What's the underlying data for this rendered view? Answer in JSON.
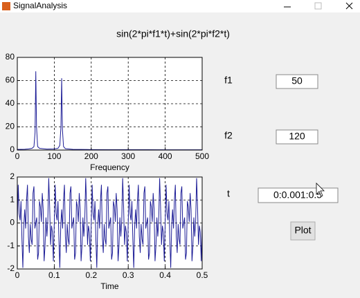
{
  "window": {
    "title": "SignalAnalysis"
  },
  "heading": "sin(2*pi*f1*t)+sin(2*pi*f2*t)",
  "chart_data": [
    {
      "type": "line",
      "xlabel": "Frequency",
      "color": "#1c1c96",
      "grid": true,
      "xlim": [
        0,
        500
      ],
      "xticks": [
        0,
        100,
        200,
        300,
        400,
        500
      ],
      "ylim": [
        0,
        80
      ],
      "yticks": [
        0,
        20,
        40,
        60,
        80
      ],
      "x": [
        0,
        10,
        20,
        30,
        40,
        45,
        48,
        50,
        52,
        55,
        60,
        80,
        100,
        110,
        115,
        118,
        120,
        122,
        125,
        130,
        150,
        200,
        250,
        300,
        350,
        400,
        450,
        500
      ],
      "values": [
        0.5,
        0.6,
        0.7,
        1,
        1.5,
        3,
        15,
        68,
        20,
        3,
        1.5,
        0.8,
        1,
        1.5,
        4,
        20,
        62,
        18,
        3,
        1.2,
        0.6,
        0.4,
        0.3,
        0.3,
        0.3,
        0.2,
        0.2,
        0.2
      ]
    },
    {
      "type": "line",
      "xlabel": "Time",
      "color": "#1c1c96",
      "grid": true,
      "xlim": [
        0,
        0.5
      ],
      "xticks": [
        0,
        0.1,
        0.2,
        0.3,
        0.4,
        0.5
      ],
      "ylim": [
        -2,
        2
      ],
      "yticks": [
        -2,
        -1,
        0,
        1,
        2
      ],
      "x": [
        0,
        0.0025,
        0.005,
        0.0075,
        0.01,
        0.0125,
        0.015,
        0.0175,
        0.02,
        0.0225,
        0.025,
        0.0275,
        0.03,
        0.0325,
        0.035,
        0.0375,
        0.04,
        0.0425,
        0.045,
        0.0475,
        0.05,
        0.0525,
        0.055,
        0.0575,
        0.06,
        0.0625,
        0.065,
        0.0675,
        0.07,
        0.0725,
        0.075,
        0.0775,
        0.08,
        0.0825,
        0.085,
        0.0875,
        0.09,
        0.0925,
        0.095,
        0.0975,
        0.1,
        0.1025,
        0.105,
        0.1075,
        0.11,
        0.1125,
        0.115,
        0.1175,
        0.12,
        0.1225,
        0.125,
        0.1275,
        0.13,
        0.1325,
        0.135,
        0.1375,
        0.14,
        0.1425,
        0.145,
        0.1475,
        0.15,
        0.1525,
        0.155,
        0.1575,
        0.16,
        0.1625,
        0.165,
        0.1675,
        0.17,
        0.1725,
        0.175,
        0.1775,
        0.18,
        0.1825,
        0.185,
        0.1875,
        0.19,
        0.1925,
        0.195,
        0.1975,
        0.2,
        0.2025,
        0.205,
        0.2075,
        0.21,
        0.2125,
        0.215,
        0.2175,
        0.22,
        0.2225,
        0.225,
        0.2275,
        0.23,
        0.2325,
        0.235,
        0.2375,
        0.24,
        0.2425,
        0.245,
        0.2475,
        0.25,
        0.2525,
        0.255,
        0.2575,
        0.26,
        0.2625,
        0.265,
        0.2675,
        0.27,
        0.2725,
        0.275,
        0.2775,
        0.28,
        0.2825,
        0.285,
        0.2875,
        0.29,
        0.2925,
        0.295,
        0.2975,
        0.3,
        0.3025,
        0.305,
        0.3075,
        0.31,
        0.3125,
        0.315,
        0.3175,
        0.32,
        0.3225,
        0.325,
        0.3275,
        0.33,
        0.3325,
        0.335,
        0.3375,
        0.34,
        0.3425,
        0.345,
        0.3475,
        0.35,
        0.3525,
        0.355,
        0.3575,
        0.36,
        0.3625,
        0.365,
        0.3675,
        0.37,
        0.3725,
        0.375,
        0.3775,
        0.38,
        0.3825,
        0.385,
        0.3875,
        0.39,
        0.3925,
        0.395,
        0.3975,
        0.4,
        0.4025,
        0.405,
        0.4075,
        0.41,
        0.4125,
        0.415,
        0.4175,
        0.42,
        0.4225,
        0.425,
        0.4275,
        0.43,
        0.4325,
        0.435,
        0.4375,
        0.44,
        0.4425,
        0.445,
        0.4475,
        0.45,
        0.4525,
        0.455,
        0.4575,
        0.46,
        0.4625,
        0.465,
        0.4675,
        0.47,
        0.4725,
        0.475,
        0.4775,
        0.48,
        0.4825,
        0.485,
        0.4875,
        0.49,
        0.4925,
        0.495,
        0.4975,
        0.5
      ],
      "values": [
        0,
        1.66,
        0.41,
        0.12,
        0.95,
        -0.71,
        -1.95,
        -0.12,
        0.59,
        -0.24,
        1,
        1.66,
        -0.59,
        -1.3,
        -0.05,
        -0.71,
        -0.95,
        1.3,
        1.59,
        -0.24,
        0,
        0.24,
        -1.59,
        -1.3,
        0.95,
        0.71,
        0.05,
        1.3,
        0.59,
        -1.66,
        -1,
        0.24,
        -0.59,
        0.12,
        1.95,
        0.71,
        -0.95,
        -0.12,
        -0.41,
        -1.66,
        0,
        1.66,
        0.41,
        0.12,
        0.95,
        -0.71,
        -1.95,
        -0.12,
        0.59,
        -0.24,
        1,
        1.66,
        -0.59,
        -1.3,
        -0.05,
        -0.71,
        -0.95,
        1.3,
        1.59,
        -0.24,
        0,
        0.24,
        -1.59,
        -1.3,
        0.95,
        0.71,
        0.05,
        1.3,
        0.59,
        -1.66,
        -1,
        0.24,
        -0.59,
        0.12,
        1.95,
        0.71,
        -0.95,
        -0.12,
        -0.41,
        -1.66,
        0,
        1.66,
        0.41,
        0.12,
        0.95,
        -0.71,
        -1.95,
        -0.12,
        0.59,
        -0.24,
        1,
        1.66,
        -0.59,
        -1.3,
        -0.05,
        -0.71,
        -0.95,
        1.3,
        1.59,
        -0.24,
        0,
        0.24,
        -1.59,
        -1.3,
        0.95,
        0.71,
        0.05,
        1.3,
        0.59,
        -1.66,
        -1,
        0.24,
        -0.59,
        0.12,
        1.95,
        0.71,
        -0.95,
        -0.12,
        -0.41,
        -1.66,
        0,
        1.66,
        0.41,
        0.12,
        0.95,
        -0.71,
        -1.95,
        -0.12,
        0.59,
        -0.24,
        1,
        1.66,
        -0.59,
        -1.3,
        -0.05,
        -0.71,
        -0.95,
        1.3,
        1.59,
        -0.24,
        0,
        0.24,
        -1.59,
        -1.3,
        0.95,
        0.71,
        0.05,
        1.3,
        0.59,
        -1.66,
        -1,
        0.24,
        -0.59,
        0.12,
        1.95,
        0.71,
        -0.95,
        -0.12,
        -0.41,
        -1.66,
        0,
        1.66,
        0.41,
        0.12,
        0.95,
        -0.71,
        -1.95,
        -0.12,
        0.59,
        -0.24,
        1,
        1.66,
        -0.59,
        -1.3,
        -0.05,
        -0.71,
        -0.95,
        1.3,
        1.59,
        -0.24,
        0,
        0.24,
        -1.59,
        -1.3,
        0.95,
        0.71,
        0.05,
        1.3,
        0.59,
        -1.66,
        -1,
        0.24,
        -0.59,
        0.12,
        1.95,
        0.71,
        -0.95,
        -0.12,
        -0.41,
        -1.66,
        0
      ]
    }
  ],
  "controls": {
    "f1_label": "f1",
    "f1_value": "50",
    "f2_label": "f2",
    "f2_value": "120",
    "t_label": "t",
    "t_value": "0:0.001:0.5",
    "button": "Plot"
  }
}
